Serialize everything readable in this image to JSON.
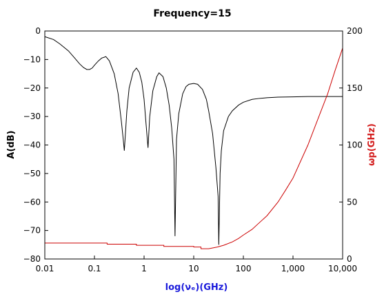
{
  "chart_data": {
    "type": "line",
    "title": "Frequency=15",
    "xlabel": "log(νₑ)(GHz)",
    "xlabel_color": "#1a1adb",
    "ylabel_left": "A(dB)",
    "ylabel_right": "ωp(GHz)",
    "ylabel_right_color": "#d42020",
    "x_scale": "log",
    "xlim": [
      0.01,
      10000
    ],
    "ylim_left": [
      -80,
      0
    ],
    "ylim_right": [
      0,
      200
    ],
    "x_ticks": [
      0.01,
      0.1,
      1,
      10,
      100,
      1000,
      10000
    ],
    "x_tick_labels": [
      "0.01",
      "0.1",
      "1",
      "10",
      "100",
      "1,000",
      "10,000"
    ],
    "y_left_ticks": [
      0,
      -10,
      -20,
      -30,
      -40,
      -50,
      -60,
      -70,
      -80
    ],
    "y_left_tick_labels": [
      "0",
      "−10",
      "−20",
      "−30",
      "−40",
      "−50",
      "−60",
      "−70",
      "−80"
    ],
    "y_right_ticks": [
      0,
      50,
      100,
      150,
      200
    ],
    "y_right_tick_labels": [
      "0",
      "50",
      "100",
      "150",
      "200"
    ],
    "grid": false,
    "series": [
      {
        "axis": "left",
        "color": "#000000",
        "x": [
          0.01,
          0.015,
          0.02,
          0.03,
          0.04,
          0.05,
          0.06,
          0.07,
          0.08,
          0.09,
          0.1,
          0.12,
          0.14,
          0.17,
          0.2,
          0.25,
          0.3,
          0.35,
          0.38,
          0.4,
          0.45,
          0.5,
          0.6,
          0.7,
          0.8,
          0.9,
          1.0,
          1.1,
          1.2,
          1.3,
          1.5,
          1.8,
          2.0,
          2.4,
          2.8,
          3.2,
          3.6,
          4.0,
          4.2,
          4.5,
          5,
          6,
          7,
          8,
          10,
          12,
          15,
          18,
          20,
          24,
          28,
          31,
          32,
          34,
          36,
          40,
          50,
          60,
          80,
          100,
          150,
          200,
          300,
          500,
          1000,
          2000,
          5000,
          10000
        ],
        "y": [
          -2,
          -3,
          -4.5,
          -7,
          -9.5,
          -11.5,
          -12.8,
          -13.5,
          -13.5,
          -13,
          -12,
          -10.5,
          -9.5,
          -9,
          -10.5,
          -15,
          -22,
          -32,
          -38,
          -42,
          -28,
          -20,
          -14.5,
          -13,
          -14.5,
          -18,
          -24,
          -33,
          -41,
          -30,
          -21,
          -16,
          -14.7,
          -16,
          -20,
          -26,
          -34,
          -45,
          -72,
          -38,
          -29,
          -22,
          -19.5,
          -18.7,
          -18.4,
          -18.7,
          -20.5,
          -24,
          -28,
          -36,
          -48,
          -58,
          -75,
          -50,
          -42,
          -35,
          -30,
          -28,
          -26,
          -25,
          -24,
          -23.7,
          -23.4,
          -23.2,
          -23.1,
          -23,
          -23,
          -23
        ]
      },
      {
        "axis": "right",
        "color": "#cc0000",
        "x": [
          0.01,
          0.18,
          0.18,
          0.7,
          0.7,
          2.5,
          2.5,
          10,
          10,
          14,
          14,
          20,
          30,
          40,
          60,
          80,
          100,
          150,
          200,
          300,
          500,
          700,
          1000,
          1500,
          2000,
          3000,
          5000,
          7000,
          10000
        ],
        "y": [
          14,
          14,
          13,
          13,
          12,
          12,
          11,
          11,
          10.5,
          10.5,
          9,
          9,
          10.5,
          12,
          15,
          18,
          21,
          26,
          31,
          38,
          50,
          60,
          71,
          88,
          100,
          120,
          145,
          165,
          185
        ]
      }
    ]
  }
}
